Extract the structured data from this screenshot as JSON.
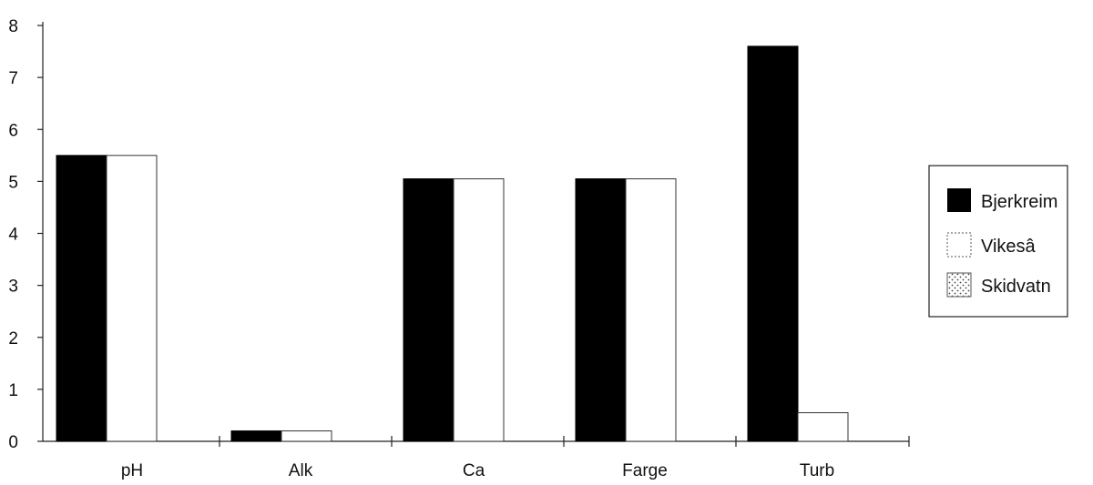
{
  "chart_data": {
    "type": "bar",
    "title": "",
    "xlabel": "",
    "ylabel": "",
    "categories": [
      "pH",
      "Alk",
      "Ca",
      "Farge",
      "Turb"
    ],
    "yticks": [
      "0",
      "1",
      "2",
      "3",
      "4",
      "5",
      "6",
      "7",
      "8"
    ],
    "ylim": [
      0,
      8
    ],
    "legend_position": "right",
    "series": [
      {
        "name": "Bjerkreim",
        "color": "#000000",
        "fill": "solid",
        "values": [
          5.5,
          0.2,
          5.05,
          5.05,
          7.6
        ]
      },
      {
        "name": "Vikesâ",
        "color": "#ffffff",
        "fill": "hollow",
        "values": [
          5.5,
          0.2,
          5.05,
          5.05,
          0.55
        ]
      },
      {
        "name": "Skidvatn",
        "color": "#ffffff",
        "fill": "stippled",
        "values": [
          0,
          0,
          0,
          0,
          0
        ]
      }
    ]
  }
}
